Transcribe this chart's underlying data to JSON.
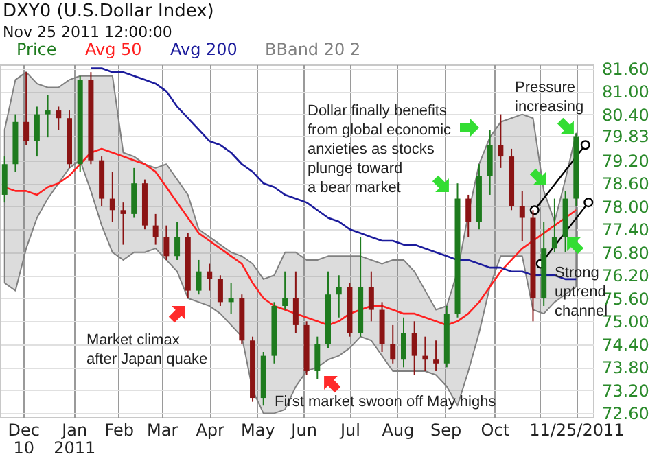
{
  "chart_data": {
    "type": "candlestick",
    "title": "DXY0 (U.S.Dollar Index)",
    "subtitle": "Nov 25 2011 12:00:00",
    "x": [
      "2010-11-19",
      "2010-11-26",
      "2010-12-03",
      "2010-12-10",
      "2010-12-17",
      "2010-12-24",
      "2010-12-31",
      "2011-01-07",
      "2011-01-14",
      "2011-01-21",
      "2011-01-28",
      "2011-02-04",
      "2011-02-11",
      "2011-02-18",
      "2011-02-25",
      "2011-03-04",
      "2011-03-11",
      "2011-03-18",
      "2011-03-25",
      "2011-04-01",
      "2011-04-08",
      "2011-04-15",
      "2011-04-22",
      "2011-04-29",
      "2011-05-06",
      "2011-05-13",
      "2011-05-20",
      "2011-05-27",
      "2011-06-03",
      "2011-06-10",
      "2011-06-17",
      "2011-06-24",
      "2011-07-01",
      "2011-07-08",
      "2011-07-15",
      "2011-07-22",
      "2011-07-29",
      "2011-08-05",
      "2011-08-12",
      "2011-08-19",
      "2011-08-26",
      "2011-09-02",
      "2011-09-09",
      "2011-09-16",
      "2011-09-23",
      "2011-09-30",
      "2011-10-07",
      "2011-10-14",
      "2011-10-21",
      "2011-10-28",
      "2011-11-04",
      "2011-11-11",
      "2011-11-18",
      "2011-11-25"
    ],
    "series": [
      {
        "name": "Price",
        "type": "candlestick",
        "color": "#1e7b1e",
        "ohlc": [
          [
            78.3,
            79.3,
            78.1,
            79.1
          ],
          [
            79.1,
            80.4,
            78.9,
            80.2
          ],
          [
            80.2,
            81.5,
            79.6,
            79.7
          ],
          [
            79.7,
            80.6,
            79.3,
            80.4
          ],
          [
            80.4,
            80.9,
            79.8,
            80.5
          ],
          [
            80.5,
            80.6,
            80.0,
            80.3
          ],
          [
            80.3,
            80.5,
            79.0,
            79.1
          ],
          [
            79.1,
            81.4,
            78.9,
            81.3
          ],
          [
            81.3,
            81.5,
            79.1,
            79.2
          ],
          [
            79.2,
            79.3,
            78.0,
            78.2
          ],
          [
            78.2,
            78.9,
            77.6,
            77.9
          ],
          [
            77.9,
            78.1,
            77.0,
            77.8
          ],
          [
            77.8,
            79.0,
            77.7,
            78.6
          ],
          [
            78.6,
            78.7,
            77.4,
            77.5
          ],
          [
            77.5,
            77.8,
            77.0,
            77.2
          ],
          [
            77.2,
            77.5,
            76.6,
            76.7
          ],
          [
            76.7,
            77.6,
            76.6,
            77.2
          ],
          [
            77.2,
            77.3,
            75.6,
            75.8
          ],
          [
            75.8,
            76.6,
            75.7,
            76.3
          ],
          [
            76.3,
            76.5,
            75.8,
            76.1
          ],
          [
            76.1,
            76.2,
            75.4,
            75.5
          ],
          [
            75.5,
            76.0,
            75.2,
            75.6
          ],
          [
            75.6,
            75.7,
            74.4,
            74.5
          ],
          [
            74.5,
            74.6,
            72.9,
            73.0
          ],
          [
            73.0,
            74.2,
            72.8,
            74.1
          ],
          [
            74.1,
            75.5,
            73.9,
            75.4
          ],
          [
            75.4,
            76.3,
            75.3,
            75.6
          ],
          [
            75.6,
            76.3,
            74.7,
            74.9
          ],
          [
            74.9,
            75.0,
            73.6,
            73.7
          ],
          [
            73.7,
            74.6,
            73.5,
            74.4
          ],
          [
            74.4,
            76.3,
            74.3,
            75.7
          ],
          [
            75.7,
            76.2,
            75.1,
            75.9
          ],
          [
            75.9,
            76.0,
            74.6,
            74.7
          ],
          [
            74.7,
            77.2,
            74.6,
            75.9
          ],
          [
            75.9,
            76.3,
            75.0,
            75.3
          ],
          [
            75.3,
            75.5,
            74.2,
            74.4
          ],
          [
            74.4,
            74.9,
            73.9,
            74.0
          ],
          [
            74.0,
            75.1,
            73.8,
            74.7
          ],
          [
            74.7,
            75.0,
            73.6,
            74.1
          ],
          [
            74.1,
            74.6,
            73.7,
            74.0
          ],
          [
            74.0,
            74.5,
            73.7,
            73.9
          ],
          [
            73.9,
            75.4,
            73.8,
            75.2
          ],
          [
            75.2,
            78.6,
            75.1,
            78.2
          ],
          [
            78.2,
            78.3,
            77.2,
            77.6
          ],
          [
            77.6,
            79.1,
            77.4,
            78.8
          ],
          [
            78.8,
            80.0,
            78.3,
            79.6
          ],
          [
            79.6,
            80.4,
            79.0,
            79.3
          ],
          [
            79.3,
            79.5,
            77.9,
            78.0
          ],
          [
            78.0,
            78.4,
            77.1,
            77.7
          ],
          [
            77.7,
            77.9,
            75.0,
            75.6
          ],
          [
            75.6,
            77.6,
            75.4,
            76.9
          ],
          [
            76.9,
            78.2,
            76.8,
            77.2
          ],
          [
            77.2,
            78.4,
            76.8,
            78.2
          ],
          [
            78.2,
            79.9,
            78.0,
            79.83
          ]
        ],
        "colors": [
          "#1e7b1e",
          "#1e7b1e",
          "#8b1414",
          "#1e7b1e",
          "#1e7b1e",
          "#8b1414",
          "#8b1414",
          "#1e7b1e",
          "#8b1414",
          "#8b1414",
          "#8b1414",
          "#8b1414",
          "#1e7b1e",
          "#8b1414",
          "#8b1414",
          "#8b1414",
          "#1e7b1e",
          "#8b1414",
          "#1e7b1e",
          "#8b1414",
          "#8b1414",
          "#1e7b1e",
          "#8b1414",
          "#8b1414",
          "#1e7b1e",
          "#1e7b1e",
          "#1e7b1e",
          "#8b1414",
          "#8b1414",
          "#1e7b1e",
          "#1e7b1e",
          "#1e7b1e",
          "#8b1414",
          "#1e7b1e",
          "#8b1414",
          "#8b1414",
          "#8b1414",
          "#1e7b1e",
          "#8b1414",
          "#8b1414",
          "#8b1414",
          "#1e7b1e",
          "#1e7b1e",
          "#8b1414",
          "#1e7b1e",
          "#1e7b1e",
          "#8b1414",
          "#8b1414",
          "#8b1414",
          "#8b1414",
          "#1e7b1e",
          "#1e7b1e",
          "#1e7b1e",
          "#1e7b1e"
        ]
      },
      {
        "name": "Avg 50",
        "type": "line",
        "color": "#ff2020",
        "values": [
          78.5,
          78.4,
          78.4,
          78.3,
          78.5,
          78.6,
          78.8,
          79.1,
          79.4,
          79.5,
          79.4,
          79.3,
          79.2,
          79.1,
          78.9,
          78.5,
          78.1,
          77.7,
          77.3,
          77.1,
          76.9,
          76.7,
          76.5,
          76.0,
          75.6,
          75.4,
          75.3,
          75.2,
          75.1,
          75.0,
          74.9,
          75.0,
          75.2,
          75.3,
          75.4,
          75.4,
          75.3,
          75.2,
          75.2,
          75.1,
          75.0,
          74.9,
          75.0,
          75.2,
          75.5,
          75.9,
          76.3,
          76.6,
          76.9,
          77.1,
          77.3,
          77.5,
          77.7,
          77.9
        ]
      },
      {
        "name": "Avg 200",
        "type": "line",
        "color": "#1c1c9c",
        "values": [
          null,
          null,
          null,
          null,
          null,
          null,
          null,
          null,
          81.6,
          81.6,
          81.5,
          81.5,
          81.4,
          81.3,
          81.2,
          81.0,
          80.6,
          80.3,
          80.0,
          79.7,
          79.6,
          79.4,
          79.1,
          78.9,
          78.6,
          78.5,
          78.3,
          78.2,
          78.1,
          77.9,
          77.7,
          77.6,
          77.4,
          77.3,
          77.2,
          77.1,
          77.1,
          77.0,
          77.0,
          76.9,
          76.8,
          76.7,
          76.6,
          76.6,
          76.5,
          76.4,
          76.4,
          76.3,
          76.3,
          76.2,
          76.2,
          76.2,
          76.1,
          76.1
        ]
      },
      {
        "name": "BBand 20 2",
        "type": "area",
        "color": "#808080",
        "values": [
          null,
          null,
          null,
          null,
          null,
          null,
          null,
          null,
          null,
          null,
          null,
          null,
          null,
          null,
          null,
          null,
          null,
          null,
          null,
          null,
          null,
          null,
          null,
          null,
          null,
          null,
          null,
          null,
          null,
          null,
          null,
          null,
          null,
          null,
          null,
          null,
          null,
          null,
          null,
          null,
          null,
          null,
          null,
          null,
          null,
          null,
          null,
          null,
          null,
          null,
          null,
          null,
          null,
          null
        ],
        "upper": [
          80.0,
          81.3,
          81.5,
          81.2,
          81.1,
          81.1,
          81.3,
          81.4,
          81.4,
          81.4,
          81.4,
          79.4,
          79.3,
          79.1,
          79.0,
          79.1,
          78.7,
          78.3,
          77.4,
          77.2,
          77.0,
          76.8,
          76.7,
          76.5,
          76.1,
          76.2,
          76.8,
          76.8,
          76.6,
          76.6,
          76.7,
          76.7,
          76.7,
          76.7,
          76.6,
          76.5,
          76.6,
          76.6,
          76.3,
          75.8,
          75.3,
          75.4,
          76.3,
          77.8,
          79.1,
          79.8,
          80.2,
          80.3,
          80.4,
          80.3,
          78.4,
          77.6,
          78.7,
          79.9
        ],
        "lower": [
          76.0,
          75.8,
          76.9,
          77.7,
          78.2,
          78.6,
          79.0,
          79.2,
          78.4,
          77.5,
          76.8,
          76.6,
          76.8,
          76.8,
          76.9,
          76.6,
          76.3,
          75.6,
          75.5,
          75.4,
          75.2,
          74.9,
          74.6,
          73.2,
          72.6,
          72.6,
          72.7,
          73.3,
          73.7,
          73.8,
          74.0,
          74.1,
          74.3,
          74.6,
          74.5,
          74.1,
          73.7,
          73.7,
          73.7,
          73.7,
          73.6,
          73.3,
          72.8,
          73.7,
          74.7,
          75.9,
          76.7,
          76.7,
          76.7,
          75.3,
          75.2,
          75.5,
          75.7,
          75.9
        ]
      },
      {
        "type": "line",
        "color": "#000000",
        "marker": "circle",
        "x": [
          "2011-10-29",
          "2011-12-01"
        ],
        "values": [
          77.9,
          79.6
        ]
      },
      {
        "type": "line",
        "color": "#000000",
        "marker": "circle",
        "x": [
          "2011-11-02",
          "2011-12-03"
        ],
        "values": [
          76.5,
          78.1
        ]
      }
    ],
    "xlim": [
      "2010-11-16",
      "2011-12-06"
    ],
    "ylim": [
      72.5,
      81.7
    ],
    "xticks": [
      {
        "value": "2010-12-01",
        "label": "Dec\n10"
      },
      {
        "value": "2011-01-03",
        "label": "Jan\n2011"
      },
      {
        "value": "2011-02-01",
        "label": "Feb"
      },
      {
        "value": "2011-03-01",
        "label": "Mar"
      },
      {
        "value": "2011-04-01",
        "label": "Apr"
      },
      {
        "value": "2011-05-02",
        "label": "May"
      },
      {
        "value": "2011-06-01",
        "label": "Jun"
      },
      {
        "value": "2011-07-01",
        "label": "Jul"
      },
      {
        "value": "2011-08-01",
        "label": "Aug"
      },
      {
        "value": "2011-09-01",
        "label": "Sep"
      },
      {
        "value": "2011-10-03",
        "label": "Oct"
      },
      {
        "value": "2011-11-01",
        "label": null
      },
      {
        "value": "2011-11-25",
        "label": "11/25/2011"
      }
    ],
    "yticks": [
      {
        "value": 72.6,
        "label": "72.60"
      },
      {
        "value": 73.2,
        "label": "73.20"
      },
      {
        "value": 73.8,
        "label": "73.80"
      },
      {
        "value": 74.4,
        "label": "74.40"
      },
      {
        "value": 75.0,
        "label": "75.00"
      },
      {
        "value": 75.6,
        "label": "75.60"
      },
      {
        "value": 76.2,
        "label": "76.20"
      },
      {
        "value": 76.8,
        "label": "76.80"
      },
      {
        "value": 77.4,
        "label": "77.40"
      },
      {
        "value": 78.0,
        "label": "78.00"
      },
      {
        "value": 78.6,
        "label": "78.60"
      },
      {
        "value": 79.2,
        "label": "79.20"
      },
      79.83,
      {
        "value": 80.4,
        "label": "80.40"
      },
      {
        "value": 81.0,
        "label": "81.00"
      },
      {
        "value": 81.6,
        "label": "81.60"
      }
    ],
    "grid": true,
    "legend": "top left",
    "annotations": [
      "Market climax after Japan quake",
      "First market swoon off May highs",
      "Dollar finally benefits from global economic anxieties as stocks plunge toward a bear market",
      "Pressure increasing",
      "Strong uptrend channel"
    ]
  }
}
